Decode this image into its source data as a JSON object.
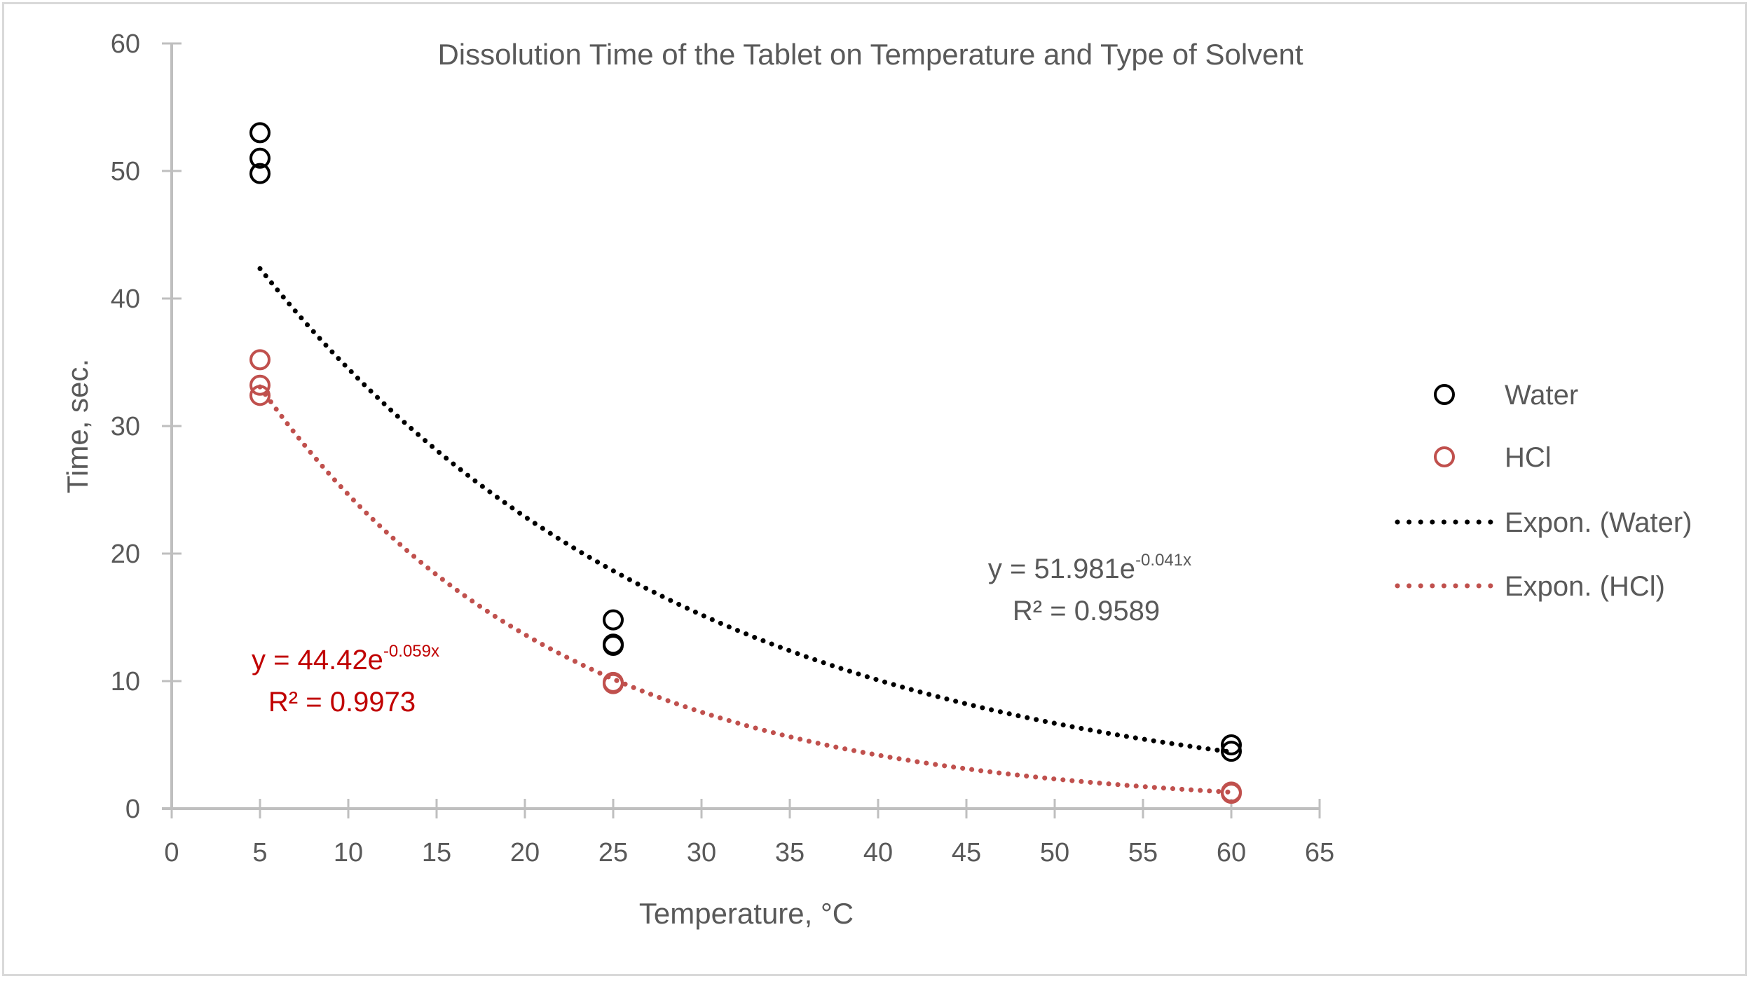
{
  "chart_data": {
    "type": "scatter",
    "title": "Dissolution Time of the Tablet on Temperature and Type of Solvent",
    "xlabel": "Temperature, °C",
    "ylabel": "Time, sec.",
    "xlim": [
      0,
      65
    ],
    "ylim": [
      0,
      60
    ],
    "x_ticks": [
      0,
      5,
      10,
      15,
      20,
      25,
      30,
      35,
      40,
      45,
      50,
      55,
      60,
      65
    ],
    "y_ticks": [
      0,
      10,
      20,
      30,
      40,
      50,
      60
    ],
    "grid": false,
    "legend_position": "right",
    "series": [
      {
        "name": "Water",
        "color": "#000000",
        "marker": "open-circle",
        "points": [
          {
            "x": 5,
            "y": 53.0
          },
          {
            "x": 5,
            "y": 51.0
          },
          {
            "x": 5,
            "y": 49.8
          },
          {
            "x": 25,
            "y": 14.8
          },
          {
            "x": 25,
            "y": 12.9
          },
          {
            "x": 25,
            "y": 12.8
          },
          {
            "x": 60,
            "y": 5.0
          },
          {
            "x": 60,
            "y": 4.5
          }
        ]
      },
      {
        "name": "HCl",
        "color": "#c0504d",
        "marker": "open-circle",
        "points": [
          {
            "x": 5,
            "y": 35.2
          },
          {
            "x": 5,
            "y": 33.2
          },
          {
            "x": 5,
            "y": 32.4
          },
          {
            "x": 25,
            "y": 9.8
          },
          {
            "x": 25,
            "y": 9.9
          },
          {
            "x": 60,
            "y": 1.3
          },
          {
            "x": 60,
            "y": 1.2
          }
        ]
      }
    ],
    "trendlines": [
      {
        "name": "Expon. (Water)",
        "series": "Water",
        "type": "exponential",
        "a": 51.981,
        "b": -0.041,
        "x_range": [
          5,
          60
        ],
        "color": "#000000",
        "style": "dotted",
        "equation_text": "y = 51.981e",
        "equation_exp": "-0.041x",
        "r2_text": "R² = 0.9589",
        "label_color": "#595959"
      },
      {
        "name": "Expon. (HCl)",
        "series": "HCl",
        "type": "exponential",
        "a": 44.42,
        "b": -0.059,
        "x_range": [
          5,
          60
        ],
        "color": "#c0504d",
        "style": "dotted",
        "equation_text": "y = 44.42e",
        "equation_exp": "-0.059x",
        "r2_text": "R² = 0.9973",
        "label_color": "#c00000"
      }
    ],
    "legend": [
      {
        "label": "Water",
        "kind": "marker",
        "color": "#000000"
      },
      {
        "label": "HCl",
        "kind": "marker",
        "color": "#c0504d"
      },
      {
        "label": "Expon. (Water)",
        "kind": "line",
        "color": "#000000"
      },
      {
        "label": "Expon. (HCl)",
        "kind": "line",
        "color": "#c0504d"
      }
    ]
  }
}
